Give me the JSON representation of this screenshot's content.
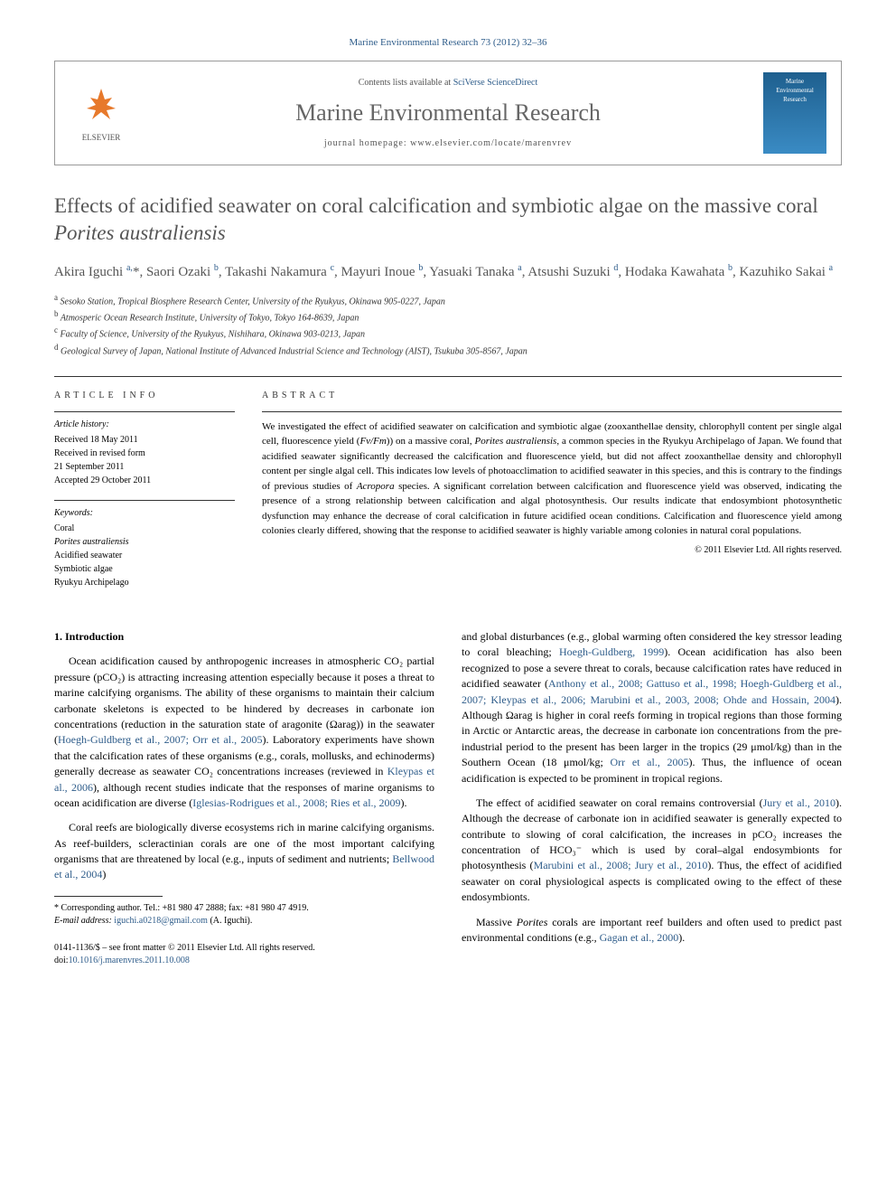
{
  "journal_ref": "Marine Environmental Research 73 (2012) 32–36",
  "header": {
    "contents_prefix": "Contents lists available at ",
    "contents_link": "SciVerse ScienceDirect",
    "journal_name": "Marine Environmental Research",
    "homepage_prefix": "journal homepage: ",
    "homepage_url": "www.elsevier.com/locate/marenvrev",
    "elsevier_label": "ELSEVIER",
    "cover_text1": "Marine",
    "cover_text2": "Environmental",
    "cover_text3": "Research"
  },
  "title_plain": "Effects of acidified seawater on coral calcification and symbiotic algae on the massive coral ",
  "title_italic": "Porites australiensis",
  "authors_html": "Akira Iguchi <sup>a,</sup>*, Saori Ozaki <sup>b</sup>, Takashi Nakamura <sup>c</sup>, Mayuri Inoue <sup>b</sup>, Yasuaki Tanaka <sup>a</sup>, Atsushi Suzuki <sup>d</sup>, Hodaka Kawahata <sup>b</sup>, Kazuhiko Sakai <sup>a</sup>",
  "affiliations": {
    "a": "Sesoko Station, Tropical Biosphere Research Center, University of the Ryukyus, Okinawa 905-0227, Japan",
    "b": "Atmosperic Ocean Research Institute, University of Tokyo, Tokyo 164-8639, Japan",
    "c": "Faculty of Science, University of the Ryukyus, Nishihara, Okinawa 903-0213, Japan",
    "d": "Geological Survey of Japan, National Institute of Advanced Industrial Science and Technology (AIST), Tsukuba 305-8567, Japan"
  },
  "article_info": {
    "label": "ARTICLE INFO",
    "history_hdr": "Article history:",
    "received": "Received 18 May 2011",
    "revised": "Received in revised form",
    "revised_date": "21 September 2011",
    "accepted": "Accepted 29 October 2011",
    "keywords_hdr": "Keywords:",
    "keywords": [
      "Coral",
      "Porites australiensis",
      "Acidified seawater",
      "Symbiotic algae",
      "Ryukyu Archipelago"
    ]
  },
  "abstract": {
    "label": "ABSTRACT",
    "text": "We investigated the effect of acidified seawater on calcification and symbiotic algae (zooxanthellae density, chlorophyll content per single algal cell, fluorescence yield (Fv/Fm)) on a massive coral, Porites australiensis, a common species in the Ryukyu Archipelago of Japan. We found that acidified seawater significantly decreased the calcification and fluorescence yield, but did not affect zooxanthellae density and chlorophyll content per single algal cell. This indicates low levels of photoacclimation to acidified seawater in this species, and this is contrary to the findings of previous studies of Acropora species. A significant correlation between calcification and fluorescence yield was observed, indicating the presence of a strong relationship between calcification and algal photosynthesis. Our results indicate that endosymbiont photosynthetic dysfunction may enhance the decrease of coral calcification in future acidified ocean conditions. Calcification and fluorescence yield among colonies clearly differed, showing that the response to acidified seawater is highly variable among colonies in natural coral populations.",
    "copyright": "© 2011 Elsevier Ltd. All rights reserved."
  },
  "intro_heading": "1. Introduction",
  "para1": "Ocean acidification caused by anthropogenic increases in atmospheric CO₂ partial pressure (pCO₂) is attracting increasing attention especially because it poses a threat to marine calcifying organisms. The ability of these organisms to maintain their calcium carbonate skeletons is expected to be hindered by decreases in carbonate ion concentrations (reduction in the saturation state of aragonite (Ωarag)) in the seawater (",
  "para1_link1": "Hoegh-Guldberg et al., 2007; Orr et al., 2005",
  "para1_cont": "). Laboratory experiments have shown that the calcification rates of these organisms (e.g., corals, mollusks, and echinoderms) generally decrease as seawater CO₂ concentrations increases (reviewed in ",
  "para1_link2": "Kleypas et al., 2006",
  "para1_cont2": "), although recent studies indicate that the responses of marine organisms to ocean acidification are diverse (",
  "para1_link3": "Iglesias-Rodrigues et al., 2008; Ries et al., 2009",
  "para1_end": ").",
  "para2": "Coral reefs are biologically diverse ecosystems rich in marine calcifying organisms. As reef-builders, scleractinian corals are one of the most important calcifying organisms that are threatened by local (e.g., inputs of sediment and nutrients; ",
  "para2_link1": "Bellwood et al., 2004",
  "para2_end": ")",
  "col2_para1_start": "and global disturbances (e.g., global warming often considered the key stressor leading to coral bleaching; ",
  "col2_para1_link1": "Hoegh-Guldberg, 1999",
  "col2_para1_cont": "). Ocean acidification has also been recognized to pose a severe threat to corals, because calcification rates have reduced in acidified seawater (",
  "col2_para1_link2": "Anthony et al., 2008; Gattuso et al., 1998; Hoegh-Guldberg et al., 2007; Kleypas et al., 2006; Marubini et al., 2003, 2008; Ohde and Hossain, 2004",
  "col2_para1_cont2": "). Although Ωarag is higher in coral reefs forming in tropical regions than those forming in Arctic or Antarctic areas, the decrease in carbonate ion concentrations from the pre-industrial period to the present has been larger in the tropics (29 μmol/kg) than in the Southern Ocean (18 μmol/kg; ",
  "col2_para1_link3": "Orr et al., 2005",
  "col2_para1_end": "). Thus, the influence of ocean acidification is expected to be prominent in tropical regions.",
  "col2_para2": "The effect of acidified seawater on coral remains controversial (",
  "col2_para2_link1": "Jury et al., 2010",
  "col2_para2_cont": "). Although the decrease of carbonate ion in acidified seawater is generally expected to contribute to slowing of coral calcification, the increases in pCO₂ increases the concentration of HCO₃⁻ which is used by coral–algal endosymbionts for photosynthesis (",
  "col2_para2_link2": "Marubini et al., 2008; Jury et al., 2010",
  "col2_para2_end": "). Thus, the effect of acidified seawater on coral physiological aspects is complicated owing to the effect of these endosymbionts.",
  "col2_para3_start": "Massive ",
  "col2_para3_ital": "Porites",
  "col2_para3_cont": " corals are important reef builders and often used to predict past environmental conditions (e.g., ",
  "col2_para3_link": "Gagan et al., 2000",
  "col2_para3_end": ").",
  "footnote": {
    "corr": "* Corresponding author. Tel.: +81 980 47 2888; fax: +81 980 47 4919.",
    "email_label": "E-mail address: ",
    "email": "iguchi.a0218@gmail.com",
    "email_suffix": " (A. Iguchi)."
  },
  "bottom": {
    "line1": "0141-1136/$ – see front matter © 2011 Elsevier Ltd. All rights reserved.",
    "doi_label": "doi:",
    "doi": "10.1016/j.marenvres.2011.10.008"
  },
  "colors": {
    "link": "#2e5c8a",
    "heading_gray": "#555",
    "orange": "#e7792b"
  }
}
